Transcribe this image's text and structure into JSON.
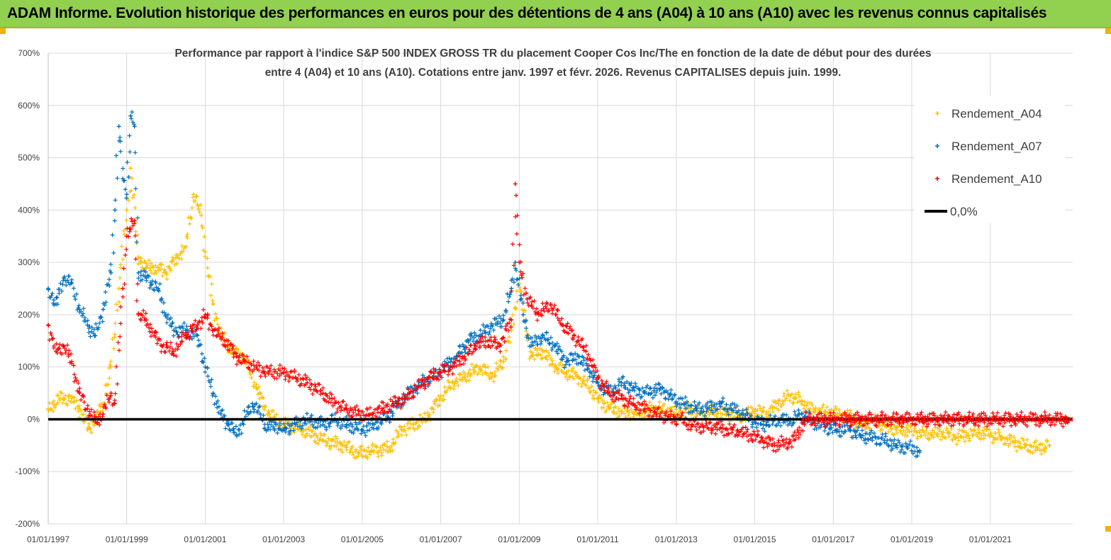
{
  "banner": {
    "title": "ADAM Informe. Evolution historique des performances en euros pour des détentions de 4 ans (A04) à 10 ans (A10) avec les revenus connus capitalisés"
  },
  "colors": {
    "banner_bg": "#92d050",
    "A04": "#ffc000",
    "A07": "#0070c0",
    "A10": "#ff0000",
    "zero": "#000000",
    "grid": "#d9d9d9"
  },
  "chart_data": {
    "type": "scatter",
    "title_lines": [
      "Performance par rapport à l'indice S&P 500 INDEX GROSS TR  du placement Cooper Cos Inc/The en fonction de la date de début pour des durées",
      "entre 4 (A04) et 10 ans (A10). Cotations entre janv. 1997 et févr. 2026. Revenus CAPITALISES depuis juin. 1999."
    ],
    "xlabel": "",
    "ylabel": "",
    "xlim": [
      1997.0,
      2023.1
    ],
    "ylim": [
      -200,
      700
    ],
    "y_ticks": [
      700,
      600,
      500,
      400,
      300,
      200,
      100,
      0,
      -100,
      -200
    ],
    "y_tick_labels": [
      "700%",
      "600%",
      "500%",
      "400%",
      "300%",
      "200%",
      "100%",
      "0%",
      "-100%",
      "-200%"
    ],
    "x_ticks": [
      1997,
      1999,
      2001,
      2003,
      2005,
      2007,
      2009,
      2011,
      2013,
      2015,
      2017,
      2019,
      2021
    ],
    "x_tick_labels": [
      "01/01/1997",
      "01/01/1999",
      "01/01/2001",
      "01/01/2003",
      "01/01/2005",
      "01/01/2007",
      "01/01/2009",
      "01/01/2011",
      "01/01/2013",
      "01/01/2015",
      "01/01/2017",
      "01/01/2019",
      "01/01/2021"
    ],
    "legend_position": "top-right",
    "series": [
      {
        "name": "Rendement_A04",
        "color": "#ffc000",
        "marker": "+",
        "points": [
          [
            1997.0,
            20
          ],
          [
            1997.3,
            40
          ],
          [
            1997.6,
            40
          ],
          [
            1997.8,
            20
          ],
          [
            1998.0,
            -20
          ],
          [
            1998.2,
            0
          ],
          [
            1998.4,
            30
          ],
          [
            1998.6,
            100
          ],
          [
            1998.8,
            250
          ],
          [
            1999.0,
            400
          ],
          [
            1999.1,
            480
          ],
          [
            1999.3,
            310
          ],
          [
            1999.5,
            290
          ],
          [
            1999.8,
            290
          ],
          [
            2000.0,
            280
          ],
          [
            2000.3,
            310
          ],
          [
            2000.5,
            330
          ],
          [
            2000.7,
            430
          ],
          [
            2000.9,
            390
          ],
          [
            2001.0,
            320
          ],
          [
            2001.2,
            220
          ],
          [
            2001.4,
            160
          ],
          [
            2001.7,
            130
          ],
          [
            2002.0,
            120
          ],
          [
            2002.3,
            60
          ],
          [
            2002.6,
            10
          ],
          [
            2003.0,
            -10
          ],
          [
            2003.5,
            -20
          ],
          [
            2004.0,
            -40
          ],
          [
            2004.5,
            -50
          ],
          [
            2004.9,
            -65
          ],
          [
            2005.3,
            -60
          ],
          [
            2005.7,
            -55
          ],
          [
            2006.0,
            -20
          ],
          [
            2006.3,
            -10
          ],
          [
            2006.6,
            0
          ],
          [
            2007.0,
            40
          ],
          [
            2007.3,
            70
          ],
          [
            2007.6,
            80
          ],
          [
            2008.0,
            100
          ],
          [
            2008.3,
            80
          ],
          [
            2008.6,
            110
          ],
          [
            2008.8,
            170
          ],
          [
            2009.0,
            260
          ],
          [
            2009.3,
            120
          ],
          [
            2009.6,
            130
          ],
          [
            2009.9,
            100
          ],
          [
            2010.2,
            90
          ],
          [
            2010.5,
            80
          ],
          [
            2010.8,
            60
          ],
          [
            2011.0,
            40
          ],
          [
            2011.3,
            20
          ],
          [
            2011.6,
            15
          ],
          [
            2012.0,
            10
          ],
          [
            2012.3,
            20
          ],
          [
            2012.6,
            20
          ],
          [
            2013.0,
            10
          ],
          [
            2013.3,
            20
          ],
          [
            2013.6,
            10
          ],
          [
            2014.0,
            15
          ],
          [
            2014.3,
            10
          ],
          [
            2014.6,
            5
          ],
          [
            2015.0,
            15
          ],
          [
            2015.3,
            10
          ],
          [
            2015.6,
            30
          ],
          [
            2015.9,
            45
          ],
          [
            2016.2,
            35
          ],
          [
            2016.5,
            15
          ],
          [
            2016.8,
            15
          ],
          [
            2017.1,
            10
          ],
          [
            2017.4,
            5
          ],
          [
            2017.7,
            -10
          ],
          [
            2018.0,
            -5
          ],
          [
            2018.3,
            -10
          ],
          [
            2018.6,
            -20
          ],
          [
            2018.9,
            -20
          ],
          [
            2019.2,
            -25
          ],
          [
            2019.5,
            -30
          ],
          [
            2019.8,
            -25
          ],
          [
            2020.1,
            -35
          ],
          [
            2020.4,
            -30
          ],
          [
            2020.7,
            -25
          ],
          [
            2021.0,
            -30
          ],
          [
            2021.3,
            -35
          ],
          [
            2021.6,
            -45
          ],
          [
            2021.9,
            -50
          ],
          [
            2022.2,
            -55
          ],
          [
            2022.5,
            -50
          ]
        ]
      },
      {
        "name": "Rendement_A07",
        "color": "#0070c0",
        "marker": "+",
        "points": [
          [
            1997.0,
            250
          ],
          [
            1997.2,
            220
          ],
          [
            1997.4,
            270
          ],
          [
            1997.6,
            260
          ],
          [
            1997.8,
            210
          ],
          [
            1998.0,
            180
          ],
          [
            1998.2,
            160
          ],
          [
            1998.4,
            210
          ],
          [
            1998.6,
            280
          ],
          [
            1998.7,
            400
          ],
          [
            1998.8,
            560
          ],
          [
            1998.9,
            460
          ],
          [
            1999.0,
            430
          ],
          [
            1999.1,
            580
          ],
          [
            1999.2,
            560
          ],
          [
            1999.3,
            280
          ],
          [
            1999.5,
            270
          ],
          [
            1999.8,
            250
          ],
          [
            2000.0,
            200
          ],
          [
            2000.2,
            170
          ],
          [
            2000.5,
            170
          ],
          [
            2000.8,
            160
          ],
          [
            2001.0,
            100
          ],
          [
            2001.2,
            50
          ],
          [
            2001.4,
            10
          ],
          [
            2001.6,
            -10
          ],
          [
            2001.8,
            -30
          ],
          [
            2002.0,
            0
          ],
          [
            2002.2,
            30
          ],
          [
            2002.4,
            10
          ],
          [
            2002.6,
            -20
          ],
          [
            2002.8,
            -10
          ],
          [
            2003.0,
            -20
          ],
          [
            2003.3,
            -10
          ],
          [
            2003.6,
            0
          ],
          [
            2004.0,
            -10
          ],
          [
            2004.3,
            0
          ],
          [
            2004.6,
            -10
          ],
          [
            2005.0,
            -20
          ],
          [
            2005.3,
            -10
          ],
          [
            2005.6,
            0
          ],
          [
            2005.9,
            30
          ],
          [
            2006.2,
            50
          ],
          [
            2006.5,
            70
          ],
          [
            2006.8,
            80
          ],
          [
            2007.1,
            100
          ],
          [
            2007.4,
            120
          ],
          [
            2007.7,
            150
          ],
          [
            2008.0,
            160
          ],
          [
            2008.3,
            180
          ],
          [
            2008.6,
            190
          ],
          [
            2008.8,
            250
          ],
          [
            2008.9,
            300
          ],
          [
            2009.1,
            200
          ],
          [
            2009.3,
            140
          ],
          [
            2009.6,
            160
          ],
          [
            2009.9,
            140
          ],
          [
            2010.2,
            110
          ],
          [
            2010.5,
            120
          ],
          [
            2010.8,
            90
          ],
          [
            2011.0,
            70
          ],
          [
            2011.3,
            50
          ],
          [
            2011.6,
            70
          ],
          [
            2011.9,
            60
          ],
          [
            2012.2,
            50
          ],
          [
            2012.6,
            60
          ],
          [
            2012.9,
            40
          ],
          [
            2013.2,
            30
          ],
          [
            2013.5,
            20
          ],
          [
            2013.8,
            20
          ],
          [
            2014.1,
            30
          ],
          [
            2014.4,
            20
          ],
          [
            2014.7,
            10
          ],
          [
            2015.0,
            -5
          ],
          [
            2015.3,
            -10
          ],
          [
            2015.6,
            0
          ],
          [
            2015.9,
            -5
          ],
          [
            2016.2,
            10
          ],
          [
            2016.5,
            -5
          ],
          [
            2016.8,
            -15
          ],
          [
            2017.1,
            -20
          ],
          [
            2017.4,
            -20
          ],
          [
            2017.7,
            -30
          ],
          [
            2018.0,
            -35
          ],
          [
            2018.3,
            -40
          ],
          [
            2018.6,
            -50
          ],
          [
            2018.9,
            -55
          ],
          [
            2019.2,
            -60
          ]
        ]
      },
      {
        "name": "Rendement_A10",
        "color": "#ff0000",
        "marker": "+",
        "points": [
          [
            1997.0,
            180
          ],
          [
            1997.2,
            130
          ],
          [
            1997.4,
            140
          ],
          [
            1997.6,
            110
          ],
          [
            1997.8,
            50
          ],
          [
            1998.0,
            20
          ],
          [
            1998.2,
            -5
          ],
          [
            1998.4,
            10
          ],
          [
            1998.6,
            50
          ],
          [
            1998.7,
            30
          ],
          [
            1998.9,
            250
          ],
          [
            1999.0,
            350
          ],
          [
            1999.2,
            380
          ],
          [
            1999.3,
            200
          ],
          [
            1999.5,
            190
          ],
          [
            1999.7,
            160
          ],
          [
            1999.9,
            140
          ],
          [
            2000.2,
            130
          ],
          [
            2000.5,
            160
          ],
          [
            2000.8,
            180
          ],
          [
            2001.0,
            200
          ],
          [
            2001.2,
            170
          ],
          [
            2001.5,
            150
          ],
          [
            2001.8,
            120
          ],
          [
            2002.0,
            110
          ],
          [
            2002.3,
            100
          ],
          [
            2002.6,
            90
          ],
          [
            2003.0,
            90
          ],
          [
            2003.3,
            80
          ],
          [
            2003.6,
            70
          ],
          [
            2004.0,
            50
          ],
          [
            2004.3,
            30
          ],
          [
            2004.6,
            20
          ],
          [
            2004.9,
            10
          ],
          [
            2005.2,
            10
          ],
          [
            2005.5,
            20
          ],
          [
            2005.8,
            30
          ],
          [
            2006.1,
            40
          ],
          [
            2006.4,
            60
          ],
          [
            2006.7,
            80
          ],
          [
            2007.0,
            90
          ],
          [
            2007.3,
            100
          ],
          [
            2007.6,
            120
          ],
          [
            2007.9,
            140
          ],
          [
            2008.2,
            150
          ],
          [
            2008.5,
            140
          ],
          [
            2008.8,
            190
          ],
          [
            2008.9,
            450
          ],
          [
            2009.0,
            300
          ],
          [
            2009.2,
            230
          ],
          [
            2009.5,
            200
          ],
          [
            2009.8,
            220
          ],
          [
            2010.1,
            180
          ],
          [
            2010.4,
            160
          ],
          [
            2010.7,
            130
          ],
          [
            2011.0,
            80
          ],
          [
            2011.3,
            50
          ],
          [
            2011.6,
            40
          ],
          [
            2011.9,
            30
          ],
          [
            2012.2,
            20
          ],
          [
            2012.5,
            10
          ],
          [
            2012.8,
            5
          ],
          [
            2013.1,
            0
          ],
          [
            2013.4,
            -10
          ],
          [
            2013.7,
            -15
          ],
          [
            2014.0,
            -15
          ],
          [
            2014.3,
            -20
          ],
          [
            2014.6,
            -25
          ],
          [
            2014.9,
            -30
          ],
          [
            2015.2,
            -40
          ],
          [
            2015.5,
            -50
          ],
          [
            2015.8,
            -45
          ],
          [
            2016.0,
            -40
          ],
          [
            2016.3,
            0
          ],
          [
            2017.0,
            0
          ],
          [
            2018.0,
            0
          ],
          [
            2019.0,
            0
          ],
          [
            2020.0,
            0
          ],
          [
            2021.0,
            0
          ],
          [
            2022.0,
            0
          ],
          [
            2023.0,
            0
          ]
        ]
      },
      {
        "name": "0,0%",
        "color": "#000000",
        "type": "line",
        "points": [
          [
            1997.0,
            0
          ],
          [
            2023.1,
            0
          ]
        ]
      }
    ]
  }
}
